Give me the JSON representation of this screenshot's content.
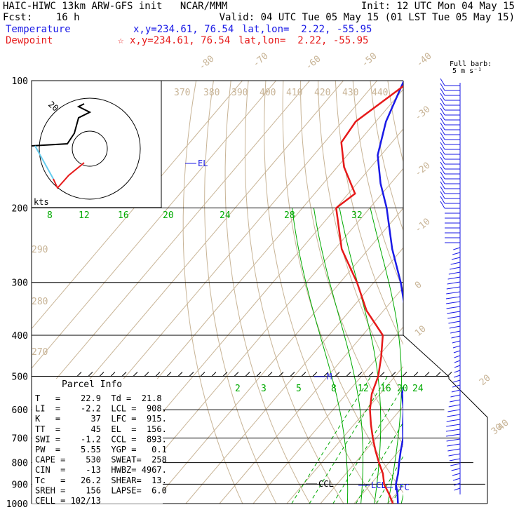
{
  "header": {
    "line1_left": "HAIC-HIWC 13km ARW-GFS init   NCAR/MMM",
    "line1_right": "Init: 12 UTC Mon 04 May 15",
    "line2_left": "Fcst:    16 h",
    "line2_right": "Valid: 04 UTC Tue 05 May 15 (01 LST Tue 05 May 15)",
    "temp_label": "Temperature",
    "temp_xy": "x,y=234.61, 76.54",
    "temp_latlon": "lat,lon=  2.22, -55.95",
    "dew_label": "Dewpoint",
    "dew_xy": "x,y=234.61, 76.54",
    "dew_latlon": "lat,lon=  2.22, -55.95",
    "star": "☆"
  },
  "colors": {
    "temperature": "#1a1ae6",
    "dewpoint": "#e61a1a",
    "isotherm": "#c8b496",
    "mixing_ratio": "#00aa00",
    "barb": "#1a1ae6"
  },
  "chart_data": {
    "type": "line",
    "pressure_levels": [
      100,
      200,
      300,
      400,
      500,
      600,
      700,
      800,
      900,
      1000
    ],
    "isotherm_labels": [
      "-80",
      "-70",
      "-60",
      "-50",
      "-40",
      "-30",
      "-20",
      "-10",
      "0",
      "10",
      "20",
      "30",
      "40"
    ],
    "theta_labels": [
      "370",
      "380",
      "390",
      "400",
      "410",
      "420",
      "430",
      "440",
      "290",
      "280",
      "270"
    ],
    "mixing_ratio_labels_top": [
      "8",
      "12",
      "16",
      "20",
      "24",
      "28",
      "32"
    ],
    "mixing_ratio_labels_low": [
      "2",
      "3",
      "5",
      "8",
      "12",
      "16",
      "20",
      "24"
    ],
    "series": [
      {
        "name": "Temperature",
        "color": "#1a1ae6",
        "points": [
          [
            1000,
            23.0
          ],
          [
            950,
            20.5
          ],
          [
            900,
            17.5
          ],
          [
            850,
            15.5
          ],
          [
            800,
            13.0
          ],
          [
            750,
            10.5
          ],
          [
            700,
            8.0
          ],
          [
            650,
            4.5
          ],
          [
            600,
            1.0
          ],
          [
            550,
            -3.5
          ],
          [
            500,
            -6.5
          ],
          [
            450,
            -11.0
          ],
          [
            400,
            -16.0
          ],
          [
            350,
            -23.5
          ],
          [
            300,
            -32.0
          ],
          [
            250,
            -43.0
          ],
          [
            200,
            -55.0
          ],
          [
            175,
            -63.0
          ],
          [
            150,
            -71.0
          ],
          [
            125,
            -77.0
          ],
          [
            100,
            -82.0
          ]
        ]
      },
      {
        "name": "Dewpoint",
        "color": "#e61a1a",
        "points": [
          [
            1000,
            21.5
          ],
          [
            950,
            18.0
          ],
          [
            900,
            14.0
          ],
          [
            850,
            11.0
          ],
          [
            800,
            7.0
          ],
          [
            750,
            3.0
          ],
          [
            700,
            -1.0
          ],
          [
            650,
            -5.0
          ],
          [
            600,
            -9.0
          ],
          [
            550,
            -12.5
          ],
          [
            500,
            -15.0
          ],
          [
            450,
            -19.0
          ],
          [
            400,
            -24.0
          ],
          [
            350,
            -35.0
          ],
          [
            300,
            -45.0
          ],
          [
            250,
            -58.0
          ],
          [
            200,
            -70.0
          ],
          [
            185,
            -68.0
          ],
          [
            160,
            -78.0
          ],
          [
            140,
            -85.0
          ],
          [
            125,
            -86.0
          ],
          [
            100,
            -80.0
          ]
        ]
      }
    ],
    "annotations": [
      "EL",
      "M",
      "CCL",
      "LCL",
      "LFC"
    ],
    "barb_header": "Full barb:",
    "barb_unit": "5 m s⁻¹",
    "hodograph_label": "kts",
    "hodograph_ring": "20"
  },
  "parcel": {
    "title": "Parcel Info",
    "rows": [
      "T   =    22.9  Td =  21.8",
      "LI  =    -2.2  LCL =  908.",
      "K   =      37  LFC =  915.",
      "TT  =      45  EL  =  156.",
      "SWI =    -1.2  CCL =  893.",
      "PW  =    5.55  YGP =   0.1",
      "CAPE =    530  SWEAT=  258",
      "CIN  =    -13  HWBZ= 4967.",
      "Tc   =   26.2  SHEAR=  13.",
      "SREH =    156  LAPSE=  6.0",
      "CELL = 102/13"
    ]
  }
}
